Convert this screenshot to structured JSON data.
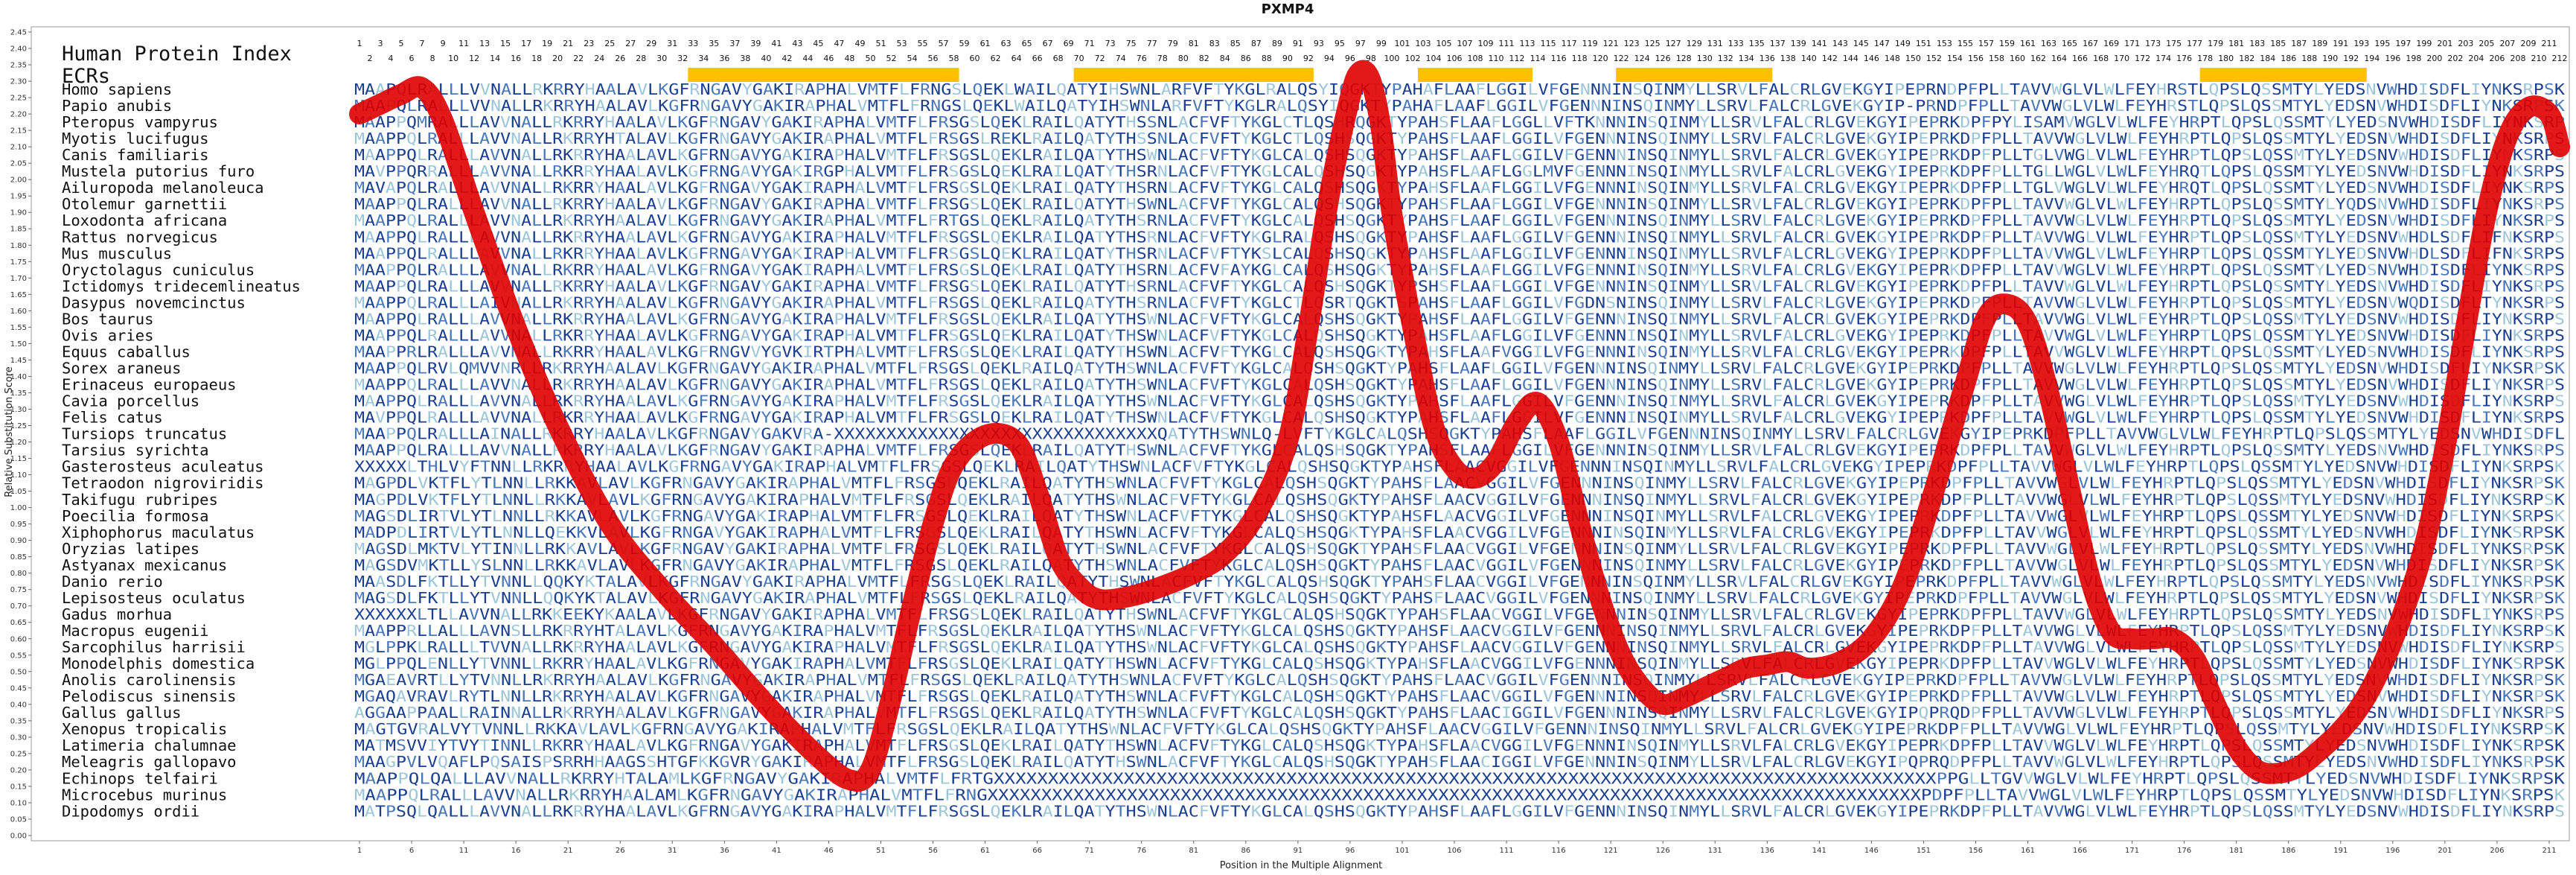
{
  "chart_data": {
    "type": "line",
    "title": "PXMP4",
    "xlabel": "Position in the Multiple Alignment",
    "ylabel": "Relative Substitution Score",
    "xlim": [
      1,
      212
    ],
    "ylim": [
      0.0,
      2.45
    ],
    "y_ticks": [
      "0.00",
      "0.05",
      "0.10",
      "0.15",
      "0.20",
      "0.25",
      "0.30",
      "0.35",
      "0.40",
      "0.45",
      "0.50",
      "0.55",
      "0.60",
      "0.65",
      "0.70",
      "0.75",
      "0.80",
      "0.85",
      "0.90",
      "0.95",
      "1.00",
      "1.05",
      "1.10",
      "1.15",
      "1.20",
      "1.25",
      "1.30",
      "1.35",
      "1.40",
      "1.45",
      "1.50",
      "1.55",
      "1.60",
      "1.65",
      "1.70",
      "1.75",
      "1.80",
      "1.85",
      "1.90",
      "1.95",
      "2.00",
      "2.05",
      "2.10",
      "2.15",
      "2.20",
      "2.25",
      "2.30",
      "2.35",
      "2.40",
      "2.45"
    ],
    "x_ticks": [
      "1",
      "6",
      "11",
      "16",
      "21",
      "26",
      "31",
      "36",
      "41",
      "46",
      "51",
      "56",
      "61",
      "66",
      "71",
      "76",
      "81",
      "86",
      "91",
      "96",
      "101",
      "106",
      "111",
      "116",
      "121",
      "126",
      "131",
      "136",
      "141",
      "146",
      "151",
      "156",
      "161",
      "166",
      "171",
      "176",
      "181",
      "186",
      "191",
      "196",
      "201",
      "206",
      "211"
    ],
    "index_row1": [
      "1",
      "3",
      "5",
      "7",
      "9",
      "11",
      "13",
      "15",
      "17",
      "19",
      "21",
      "23",
      "25",
      "27",
      "29",
      "31",
      "33",
      "35",
      "37",
      "39",
      "41",
      "43",
      "45",
      "47",
      "49",
      "51",
      "53",
      "55",
      "57",
      "59",
      "61",
      "63",
      "65",
      "67",
      "69",
      "71",
      "73",
      "75",
      "77",
      "79",
      "81",
      "83",
      "85",
      "87",
      "89",
      "91",
      "93",
      "95",
      "97",
      "99",
      "101",
      "103",
      "105",
      "107",
      "109",
      "111",
      "113",
      "115",
      "117",
      "119",
      "121",
      "123",
      "125",
      "127",
      "129",
      "131",
      "133",
      "135",
      "137",
      "139",
      "141",
      "143",
      "145",
      "147",
      "149",
      "151",
      "153",
      "155",
      "157",
      "159",
      "161",
      "163",
      "165",
      "167",
      "169",
      "171",
      "173",
      "175",
      "177",
      "179",
      "181",
      "183",
      "185",
      "187",
      "189",
      "191",
      "193",
      "195",
      "197",
      "199",
      "201",
      "203",
      "205",
      "207",
      "209",
      "211"
    ],
    "index_row2": [
      "2",
      "4",
      "6",
      "8",
      "10",
      "12",
      "14",
      "16",
      "18",
      "20",
      "22",
      "24",
      "26",
      "28",
      "30",
      "32",
      "34",
      "36",
      "38",
      "40",
      "42",
      "44",
      "46",
      "48",
      "50",
      "52",
      "54",
      "56",
      "58",
      "60",
      "62",
      "64",
      "66",
      "68",
      "70",
      "72",
      "74",
      "76",
      "78",
      "80",
      "82",
      "84",
      "86",
      "88",
      "90",
      "92",
      "94",
      "96",
      "98",
      "100",
      "102",
      "104",
      "106",
      "108",
      "110",
      "112",
      "114",
      "116",
      "118",
      "120",
      "122",
      "124",
      "126",
      "128",
      "130",
      "132",
      "134",
      "136",
      "138",
      "140",
      "142",
      "144",
      "146",
      "148",
      "150",
      "152",
      "154",
      "156",
      "158",
      "160",
      "162",
      "164",
      "166",
      "168",
      "170",
      "172",
      "174",
      "176",
      "178",
      "180",
      "182",
      "184",
      "186",
      "188",
      "190",
      "192",
      "194",
      "196",
      "198",
      "200",
      "202",
      "204",
      "206",
      "208",
      "210",
      "212"
    ],
    "header_labels": [
      "Human Protein Index",
      "ECRs"
    ],
    "ecr_regions": [
      [
        33,
        58
      ],
      [
        70,
        92
      ],
      [
        103,
        113
      ],
      [
        122,
        136
      ],
      [
        178,
        193
      ]
    ],
    "ecr_color": "#ffc000",
    "line_color": "#e00000",
    "series": [
      {
        "x": [
          1,
          3,
          5,
          7,
          9,
          12,
          16,
          20,
          25,
          30,
          35,
          40,
          45,
          48,
          50,
          52,
          54,
          56,
          58,
          61,
          64,
          66,
          68,
          70,
          72,
          75,
          78,
          81,
          84,
          87,
          90,
          92,
          94,
          96,
          97,
          98,
          99,
          100,
          102,
          104,
          106,
          108,
          110,
          112,
          114,
          116,
          118,
          120,
          122,
          124,
          126,
          128,
          130,
          132,
          134,
          136,
          138,
          140,
          143,
          146,
          149,
          152,
          155,
          157,
          159,
          161,
          163,
          165,
          167,
          169,
          171,
          173,
          175,
          177,
          179,
          181,
          183,
          185,
          187,
          189,
          191,
          193,
          195,
          197,
          199,
          201,
          203,
          205,
          207,
          209,
          211,
          212
        ],
        "y": [
          2.2,
          2.23,
          2.26,
          2.28,
          2.18,
          1.9,
          1.55,
          1.25,
          0.95,
          0.75,
          0.58,
          0.4,
          0.24,
          0.17,
          0.2,
          0.42,
          0.7,
          0.95,
          1.13,
          1.22,
          1.2,
          1.05,
          0.85,
          0.76,
          0.72,
          0.73,
          0.76,
          0.8,
          0.86,
          0.98,
          1.2,
          1.55,
          1.95,
          2.25,
          2.33,
          2.3,
          2.15,
          1.9,
          1.55,
          1.25,
          1.12,
          1.09,
          1.14,
          1.26,
          1.32,
          1.2,
          0.95,
          0.72,
          0.55,
          0.45,
          0.4,
          0.42,
          0.45,
          0.48,
          0.51,
          0.52,
          0.53,
          0.51,
          0.53,
          0.6,
          0.76,
          1.05,
          1.38,
          1.58,
          1.62,
          1.56,
          1.35,
          1.06,
          0.78,
          0.62,
          0.6,
          0.6,
          0.6,
          0.54,
          0.4,
          0.27,
          0.2,
          0.19,
          0.21,
          0.26,
          0.32,
          0.4,
          0.52,
          0.68,
          0.88,
          1.18,
          1.55,
          1.9,
          2.13,
          2.22,
          2.2,
          2.1
        ]
      }
    ]
  },
  "species": [
    "Homo sapiens",
    "Papio anubis",
    "Pteropus vampyrus",
    "Myotis lucifugus",
    "Canis familiaris",
    "Mustela putorius furo",
    "Ailuropoda melanoleuca",
    "Otolemur garnettii",
    "Loxodonta africana",
    "Rattus norvegicus",
    "Mus musculus",
    "Oryctolagus cuniculus",
    "Ictidomys tridecemlineatus",
    "Dasypus novemcinctus",
    "Bos taurus",
    "Ovis aries",
    "Equus caballus",
    "Sorex araneus",
    "Erinaceus europaeus",
    "Cavia porcellus",
    "Felis catus",
    "Tursiops truncatus",
    "Tarsius syrichta",
    "Gasterosteus aculeatus",
    "Tetraodon nigroviridis",
    "Takifugu rubripes",
    "Poecilia formosa",
    "Xiphophorus maculatus",
    "Oryzias latipes",
    "Astyanax mexicanus",
    "Danio rerio",
    "Lepisosteus oculatus",
    "Gadus morhua",
    "Macropus eugenii",
    "Sarcophilus harrisii",
    "Monodelphis domestica",
    "Anolis carolinensis",
    "Pelodiscus sinensis",
    "Gallus gallus",
    "Xenopus tropicalis",
    "Latimeria chalumnae",
    "Meleagris gallopavo",
    "Echinops telfairi",
    "Microcebus murinus",
    "Dipodomys ordii"
  ],
  "sequences": [
    "MAAPQLRALLLVVNALLRKRRYHAALAVLKGFRNGAVYGAKIRAPHALVMTFLFRNGSLQEKLWAILQATYIHSWNLARFVFTYKGLRALQSYIQGKTYPAHAFLAAFLGGILVFGENNNINSQINMYLLSRVLFALCRLGVEKGYIPEPRNDPFPLLTAVVWGLVLWLFEYHRSTLQPSLQSSMTYLYEDSNVWHDISDFLIYNKSRPSK",
    "MAAPQLRALLLVVNALLRKRRYHAALAVLKGFRNGAVYGAKIRAPHALVMTFLFRNGSLQEKLWAILQATYIHSWNLARFVFTYKGLRALQSYIQGKTYPAHAFLAAFLGGILVFGENNNINSQINMYLLSRVLFALCRLGVEKGYIP-PRNDPFPLLTAVVWGLVLWLFEYHRSTLQPSLQSSMTYLYEDSNVWHDISDFLIYNKSRPSK",
    "MAAPPQMRALLLAVVNALLRKRRYHAALAVLKGFRNGAVYGAKIRAPHALVMTFLFRSGSLQEKLRAILQATYTHSSNLACFVFTYKGLCTLQSHRQGKTYPAHSFLAAFLGGLLVFTKNNNINSQINMYLLSRVLFALCRLGVEKGYIPEPRKDPFPYLISAMVWGLVLWLFEYHRPTLQPSLQSSMTYLYEDSNVWHDISDFLIYNKSRPSK",
    "MAAPPQLRALLLAVVNALLRKRRYHTALAVLKGFRNGAVYGAKIRAPHALVMTFLFRSGSLREKLRAILQATYTHSSNLACFVFTYKGLCTLQSHSQGKTYPAHSFLAAFLGGILVFGENNNINSQINMYLLSRVLFALCRLGVEKGYIPEPRKDPFPLLTAVVWGLVLWLFEYHRPTLQPSLQSSMTYLYEDSNVWHDISDFLIYNKSRPSK",
    "MAAPPQLRALLLAVVNALLRKRRYHAALAVLKGFRNGAVYGAKIRAPHALVMTFLFRSGSLQEKLRAILQATYTHSWNLACFVFTYKGLCALQSHSQGKTYPAHSFLAAFLGGILVFGENNNINSQINMYLLSRVLFALCRLGVEKGYIPEPRKDPFPLLTGLVWGLVLWLFEYHRPTLQPSLQSSMTYLYEDSNVWHDISDFLIYNKSRPSK",
    "MAVPPQRRALLLAVVNALLRKRRYHAALAVLKGFRNGAVYGAKIRGPHALVMTFLFRSGSLQEKLRAILQATYTHSRNLACFVFTYKGLCALQSHSQGKTYPAHSFLAAFLGGLMVFGENNNINSQINMYLLSRVLFALCRLGVEKGYIPEPRKDPFPLLTGLLWGLVLWLFEYHRQTLQPSLQSSMTYLYEDSNVWHDISDFLIYNKSRPSK",
    "MAVAPQLRALLLAVVNALLRKRRYHAALAVLKGFRNGAVYGAKIRAPHALVMTFLFRSGSLQEKLRAILQATYTHSRNLACFVFTYKGLCALQSHSQGKTYPAHSFLAAFLGGILVFGENNNINSQINMYLLSRVLFALCRLGVEKGYIPEPRKDPFPLLTGLVWGLVLWLFEYHRQTLQPSLQSSMTYLYEDSNVWHDISDFLIYNKSRPSK",
    "MAAPPQLRALLLAVVNALLRKRRYHAALAVLKGFRNGAVYGAKIRAPHALVMTFLFRSGSLQEKLRAILQATYTHSWNLACFVFTYKGLCALQSHSQGKTYPAHSFLAAFLGGILVFGENNNINSQINMYLLSRVLFALCRLGVEKGYIPEPRKDPFPLLTAVVWGLVLWLFEYHRPTLQPSLQSSMTYLYQDSNVWHDISDFLIYNKSRPSK",
    "MAAPPQLRALLLAVVNALLRKRRYHAALAVLKGFRNGAVYGAKIRAPHALVMTFLFRTGSLQEKLRAILQATYTHSRNLACFVFTYKGLCALQSHSQGKTYPAHSFLAAFLGGILVFGENNNINSQINMYLLSRVLFALCRLGVEKGYIPEPRKDPFPLLTAVVWGLVLWLFEYHRPTLQPSLQSSMTYLYEDSNVWHDISDFLIYNKSRPSK",
    "MAAPPQLRALLLAVVNALLRKRRYHAALAVLKGFRNGAVYGAKIRAPHALVMTFLFRSGSLQEKLRAILQATYTHSRNLACFVFTYKGLRALQSHSQGKTYPAHSFLAAFLGGILVFGENNNINSQINMYLLSRVLFALCRLGVEKGYIPEPRKDPFPLLTAVVWGLVLWLFEYHRPTLQPSLQSSMTYLYEDSNVWHDLSDFLIFNKSRPSK",
    "MAAPPQLRALLLAVVNALLRKRRYHAALAVLKGFRNGAVYGAKIRAPHALVMTFLFRSGSLQEKLRAILQATYTHSRNLACFVFTYKSLCALQSHSQGKTYPAHSFLAAFLGGILVFGENNNINSQINMYLLSRVLFALCRLGVEKGYIPEPRKDPFPLLTAVVWGLVLWLFEYHRPTLQPSLQSSMTYLYEDSNVWHDLSDFLIFNKSRPSK",
    "MAAPPQLRALLLAVVNALLRKRRYHAALAVLKGFRNGAVYGAKIRAPHALVMTFLFRSGSLQEKLRAILQATYTHSRNLACFVFAYKGLCALQSHSQGKTYPAHSFLAAFLGGILVFGENNNINSQINMYLLSRVLFALCRLGVEKGYIPEPRKDPFPLLTAVVWGLVLWLFEYHRPTLQPSLQSSMTYLYEDSNVWHDISDFLIYNKSRPSK",
    "MAAPPQLRALLLAVVNALLRKRRYHAALAVLKGFRNGAVYGAKIRAPHALVMTFLFRSGSLQEKLRAILQATYTHSRNLACFVFTYKGLCALQSHSQGKTYPSHSFLAAFLGGILVFGENNNINSQINMYLLSRVLFALCRLGVEKGYIPEPRKDPFPLLTAVVWGLVLWLFEYHRPTLQPSLQSSMTYLYEDSNVWHDISDFLIYNKSRPSK",
    "MAAPPQLRALLLAIVNALLRKRRYHAALAVLKGFRNGAVYGAKIRAPHALVMTFLFRSGSLQEKLRAILQATYTHSRNLACFVFTYKGLCTLQSRTQGKTSPAHSFLAAFLGGILVFGDNSNINSQINMYLLSRVLFALCRLGVEKGYIPEPRKDPFPLLTAVVWGLVLWLFEYHRPTLQPSLQSSMTYLYEDSNVWQDISDFLTYNKSRPSK",
    "MAAPPQLRALLLAVVNALLRKRRYHAALAVLKGFRNGAVYGAKIRAPHALVMTFLFRSGSLQEKLRAILQATYTHSWNLACFVFTYKGLCALQSHSQGKTYPAHSFLAAFLGGILVFGENNNINSQINMYLLSRVLFALCRLGVEKGYIPEPRKDPFPLLTAVVWGLVLWLFEYHRPTLQPSLQSSMTYLYEDSNVWHDISDFLIYNKSRPSK",
    "MAAPPQLRALLLAVVNALLRKRRYHAALAVLKGFRNGAVYGAKIRAPHALVMTFLFRSGSLQEKLRAILQATYTHSWNLACFVFTYKGLCALQSHSQGKTYPAHSFLAAFLGGILVFGENNNINSQINMYLLSRVLFALCRLGVEKGYIPEPRKDPFPLLTAVVWGLVLWLFEYHRPTLQPSLQSSMTYLYEDSNVWHDISDFLIYNKSRPSK",
    "MAAPPRLRALLLAVVNALLRKRRYHAALAVLKGFRNGVVYGVKIRTPHALVMTFLFRSGSLQEKLRAILQATYTHSWNLACFVFTYKGLCALQSHSQGKTYPAHSFLAAFVGGILVFGENNNINSQINMYLLSRVLFALCRLGVEKGYIPEPRKDPFPLLTAVVWGLVLWLFEYHRPTLQPSLQSSMTYLYEDSNVWHDISDFLIYNKSRPSK",
    "MAAPPQLRVLQMVVNRLLRKRRYHAALAVLKGFRNGAVYGAKIRAPHALVMTFLFRSGSLQEKLRAILQATYTHSWNLACFVFTYKGLCALQSHSQGKTYPAHSFLAAFLGGILVFGENNNINSQINMYLLSRVLFALCRLGVEKGYIPEPRKDPFPLLTAVVWGLVLWLFEYHRPTLQPSLQSSMTYLYEDSNVWHDISDFLIYNKSRPSK",
    "MAAPPQLRALLLAVVNALLRKRRYHAALAVLKGFRNGAVYGAKIRAPHALVMTFLFRSGSLQEKLRAILQATYTHSWNLACFVFTYKGLCALQSHSQGKTYPAHSFLAAFLGGILVFGENNNINSQINMYLLSRVLFALCRLGVEKGYIPEPRKDPFPLLTAVVWGLVLWLFEYHRPTLQPSLQSSMTYLYEDSNVWHDISDFLIYNKSRPSK",
    "MAAPPQLRALLLAVVNALLRKRRYHAALAVLKGFRNGAVYGAKIRAPHALVMTFLFRSGSLQEKLRAILQATYTHSWNLACFVFTYKGLCALQSHSQGKTYPAHSFLAAFLGGILVFGENNNINSQINMYLLSRVLFALCRLGVEKGYIPEPRKDPFPLLTAVVWGLVLWLFEYHRPTLQPSLQSSMTYLYEDSNVWHDISDFLIYNKSRPSK",
    "MAVPPQLRALLLAVVNALLRKRRYHAALAVLKGFRNGAVYGAKIRAPHALVMTFLFRSGSLQEKLRAILQATYTHSWNLACFVFTYKGLCALQSHSQGKTYPAHSFLAAFLGGILVFGENNNINSQINMYLLSRVLFALCRLGVEKGYIPEPRKDPFPLLTAVVWGLVLWLFEYHRPTLQPSLQSSMTYLYEDSNVWHDISDFLIYNKSRPSK",
    "MAAPPQLRALLLAINALLRKRRYHAALAVLKGFRNGAVYGAKVRA-XXXXXXXXXXXXXXXXXXXXXXXXXXXXXXXQATYTHSWNLQ-LVFTYKGLCALQSHSQGKTYPAHSFLAAFLGGILVFGENNNINSQINMYLLSRVLFALCRLGVEKGYIPEPRKDPFPLLTAVVWGLVLWLFEYHRPTLQPSLQSSMTYLYEDSNVWHDISDFLIYNKSRPSK",
    "MAAPPQLRALLLAVVNALLRKRRYHAALAVLKGFRNGAVYGAKIRAPHALVMTFLFRSGSLQEKLRAILQATYTHSWNLACFVFTYKGLCALQSHSQGKTYPAHSFLAAFLGGILVFGENNNINSQINMYLLSRVLFALCRLGVEKGYIPEPRKDPFPLLTAVVWGLVLWLFEYHRPTLQPSLQSSMTYLYEDSNVWHDISDFLIYNKSRPSK",
    "XXXXXLTHLVYFTNNLLRKRRYHAALAVLKGFRNGAVYGAKIRAPHALVMTFLFRSGSLQEKLRAILQATYTHSWNLACFVFTYKGLCALQSHSQGKTYPAHSFLAACVGGILVFGENNNINSQINMYLLSRVLFALCRLGVEKGYIPEPRKDPFPLLTAVVWGLVLWLFEYHRPTLQPSLQSSMTYLYEDSNVWHDISDFLIYNKSRPSK",
    "MAGPDLVKTFLYTLNNLLRKKAVLAVLKGFRNGAVYGAKIRAPHALVMTFLFRSGSLQEKLRAILQATYTHSWNLACFVFTYKGLCALQSHSQGKTYPAHSFLAACVGGILVFGENNNINSQINMYLLSRVLFALCRLGVEKGYIPEPRKDPFPLLTAVVWGLVLWLFEYHRPTLQPSLQSSMTYLYEDSNVWHDISDFLIYNKSRPSK",
    "MAGPDLVKTFLYTLNNLLRKKAVLAVLKGFRNGAVYGAKIRAPHALVMTFLFRSGSLQEKLRAILQATYTHSWNLACFVFTYKGLCALQSHSQGKTYPAHSFLAACVGGILVFGENNNINSQINMYLLSRVLFALCRLGVEKGYIPEPRKDPFPLLTAVVWGLVLWLFEYHRPTLQPSLQSSMTYLYEDSNVWHDISDFLIYNKSRPSK",
    "MAGSDLIRTVLYTLNNLLRKKAVLAVLKGFRNGAVYGAKIRAPHALVMTFLFRSGSLQEKLRAILQATYTHSWNLACFVFTYKGLCALQSHSQGKTYPAHSFLAACVGGILVFGENNNINSQINMYLLSRVLFALCRLGVEKGYIPEPRKDPFPLLTAVVWGLVLWLFEYHRPTLQPSLQSSMTYLYEDSNVWHDISDFLIYNKSRPSK",
    "MADPDLIRTVLYTLNNLLQEKKVLAVLKGFRNGAVYGAKIRAPHALVMTFLFRSGSLQEKLRAILQATYTHSWNLACFVFTYKGLCALQSHSQGKTYPAHSFLAACVGGILVFGENNNINSQINMYLLSRVLFALCRLGVEKGYIPEPRKDPFPLLTAVVWGLVLWLFEYHRPTLQPSLQSSMTYLYEDSNVWHDISDFLIYNKSRPSK",
    "MAGSDLMKTVLYTINNLLRKKAVLAVLKGFRNGAVYGAKIRAPHALVMTFLFRSGSLQEKLRAILQATYTHSWNLACFVFTYKGLCALQSHSQGKTYPAHSFLAACVGGILVFGENNNINSQINMYLLSRVLFALCRLGVEKGYIPEPRKDPFPLLTAVVWGLVLWLFEYHRPTLQPSLQSSMTYLYEDSNVWHDISDFLIYNKSRPSK",
    "MAGSDVMKTLLYSLNNLLRKKAVLAVLKGFRNGAVYGAKIRAPHALVMTFLFRSGSLQEKLRAILQATYTHSWNLACFVFTYKGLCALQSHSQGKTYPAHSFLAACVGGILVFGENNNINSQINMYLLSRVLFALCRLGVEKGYIPEPRKDPFPLLTAVVWGLVLWLFEYHRPTLQPSLQSSMTYLYEDSNVWHDISDFLIYNKSRPSK",
    "MAASDLFKTLLYTVNNLLQQKYKTALAVLKGFRNGAVYGAKIRAPHALVMTFLFRSGSLQEKLRAILQATYTHSWNLACFVFTYKGLCALQSHSQGKTYPAHSFLAACVGGILVFGENNNINSQINMYLLSRVLFALCRLGVEKGYIPEPRKDPFPLLTAVVWGLVLWLFEYHRPTLQPSLQSSMTYLYEDSNVWHDISDFLIYNKSRPSK",
    "MAGSDLFKTLLYTVNNLLQQKYKTALAVLKGFRNGAVYGAKIRAPHALVMTFLFRSGSLQEKLRAILQATYTHSWNLACFVFTYKGLCALQSHSQGKTYPAHSFLAACVGGILVFGENNNINSQINMYLLSRVLFALCRLGVEKGYIPEPRKDPFPLLTAVVWGLVLWLFEYHRPTLQPSLQSSMTYLYEDSNVWHDISDFLIYNKSRPSK",
    "XXXXXXLTLLAVVNALLRKKEEKYKAALAVLKGFRNGAVYGAKIRAPHALVMTFLFRSGSLQEKLRAILQATYTHSWNLACFVFTYKGLCALQSHSQGKTYPAHSFLAACVGGILVFGENNNINSQINMYLLSRVLFALCRLGVEKGYIPEPRKDPFPLLTAVVWGLVLWLFEYHRPTLQPSLQSSMTYLYEDSNVWHDISDFLIYNKSRPSK",
    "MAAPPRLLALLLAVNSLLRKRRYHTALAVLKGFRNGAVYGAKIRAPHALVMTFLFRSGSLQEKLRAILQATYTHSWNLACFVFTYKGLCALQSHSQGKTYPAHSFLAACVGGILVFGENNNINSQINMYLLSRVLFALCRLGVEKGYIPEPRKDPFPLLTAVVWGLVLWLFEYHRPTLQPSLQSSMTYLYEDSNVWHDISDFLIYNKSRPSK",
    "MGLPPKLRALLLTVVNALLRKRRYHAALAVLKGFRNGAVYGAKIRAPHALVMTFLFRSGSLQEKLRAILQATYTHSWNLACFVFTYKGLCALQSHSQGKTYPAHSFLAACVGGILVFGENNNINSQINMYLLSRVLFALCRLGVEKGYIPEPRKDPFPLLTAVVWGLVLWLFEYHRPTLQPSLQSSMTYLYEDSNVWHDISDFLIYNKSRPSK",
    "MGLPPQLENLLYTVNNLLRKRRYHAALAVLKGFRNGAVYGAKIRAPHALVMTFLFRSGSLQEKLRAILQATYTHSWNLACFVFTYKGLCALQSHSQGKTYPAHSFLAACVGGILVFGENNNINSQINMYLLSRVLFALCRLGVEKGYIPEPRKDPFPLLTAVVWGLVLWLFEYHRPTLQPSLQSSMTYLYEDSNVWHDISDFLIYNKSRPSK",
    "MGAEAVRTLLYTVNNLLRKRRYHAALAVLKGFRNGAVYGAKIRAPHALVMTFLFRSGSLQEKLRAILQATYTHSWNLACFVFTYKGLCALQSHSQGKTYPAHSFLAACVGGILVFGENNNINSQINMYLLSRVLFALCRLGVEKGYIPEPRKDPFPLLTAVVWGLVLWLFEYHRPTLQPSLQSSMTYLYEDSNVWHDISDFLIYNKSRPSK",
    "MGAQAVRAVLRYTLNNLLRKRRYHAALAVLKGFRNGAVYGAKIRAPHALVMTFLFRSGSLQEKLRAILQATYTHSWNLACFVFTYKGLCALQSHSQGKTYPAHSFLAACVGGILVFGENNNINSQINMYLLSRVLFALCRLGVEKGYIPEPRKDPFPLLTAVVWGLVLWLFEYHRPTLQPSLQSSMTYLYEDSNVWHDISDFLIYNKSRPSK",
    "AGGAAPPAALLRAINNALLRKRRYHAALAVLKGFRNGAVYGAKIRAPHALVMTFLFRSGSLQEKLRAILQATYTHSWNLACFVFTYKGLCALQSHSQGKTYPAHSFLAACIGGILVFGENNNINSQINMYLLSRVLFALCRLGVEKGYIPQPRQDPFPLLTAVVWGLVLWLFEYHRPTLQPSLQSSMTYLYEDSNVWHDISDFLIYNKSRPSK",
    "MAGTGVRALVYTVNNLLRKKAVLAVLKGFRNGAVYGAKIRAPHALVMTFLFRSGSLQEKLRAILQATYTHSWNLACFVFTYKGLCALQSHSQGKTYPAHSFLAACVGGILVFGENNNINSQINMYLLSRVLFALCRLGVEKGYIPEPRKDPFPLLTAVVWGLVLWLFEYHRPTLQPSLQSSMTYLYEDSNVWHDISDFLIYNKSRPSK",
    "MATMSVVIYTVYTINNLLRKRRYHAALAVLKGFRNGAVYGAKIRAPHALVMTFLFRSGSLQEKLRAILQATYTHSWNLACFVFTYKGLCALQSHSQGKTYPAHSFLAACVGGILVFGENNNINSQINMYLLSRVLFALCRLGVEKGYIPEPRKDPFPLLTAVVWGLVLWLFEYHRPTLQPSLQSSMTYLYEDSNVWHDISDFLIYNKSRPSK",
    "MAAGPVLVQAFLPQSAISPSRRHHAAGSSHTGFKKGVRYGAKIRAPHALVMTFLFRSGSLQEKLRAILQATYTHSWNLACFVFTYKGLCALQSHSQGKTYPAHSFLAACIGGILVFGENNNINSQINMYLLSRVLFALCRLGVEKGYIPQPRQDPFPLLTAVVWGLVLWLFEYHRPTLQPSLQSSMTYLYEDSNVWHDISDFLIYNKSRPSK",
    "MAAPPQLQALLLAVVNALLRKRRYHTALAMLKGFRNGAVYGAKIRAPHALVMTFLFRTGXXXXXXXXXXXXXXXXXXXXXXXXXXXXXXXXXXXXXXXXXXXXXXXXXXXXXXXXXXXXXXXXXXXXXXXXXXXXXXXXXXXXXXXPPGLLTGVVWGLVLWLFEYHRPTLQPSLQSSMTYLYEDSNVWHDISDFLIYNKSRPSK",
    "MAAPPQLRALLLAVVNALLRKRRYHAALAMLKGFRNGAVYGAKIRAPHALVMTFLFRNGXXXXXXXXXXXXXXXXXXXXXXXXXXXXXXXXXXXXXXXXXXXXXXXXXXXXXXXXXXXXXXXXXXXXXXXXXXXXXXXXXXXXXXXPDPFPLLTAVVWGLVLWLFEYHRPTLQPSLQSSMTYLYEDSNVWHDISDFLIYNKSRPSK",
    "MATPSQLQALLLAVVNALLRKRRYHAALAVLKGFRNGAVYGAKIRAPHALVMTFLFRSGSLQEKLRAILQATYTHSWNLACFVFTYKGLCALQSHSQGKTYPAHSFLAAFLGGILVFGENNNINSQINMYLLSRVLFALCRLGVEKGYIPEPRKDPFPLLTAVVWGLVLWLFEYHRPTLQPSLQSSMTYLYEDSNVWHDISDFLIYNKSRPSK"
  ],
  "colors": {
    "residue_dark": "#1a3f8f",
    "residue_mid": "#4a78b8",
    "residue_light": "#9cc6d8",
    "residue_pale": "#c4e2e8",
    "gap_dark": "#2a4d9a"
  }
}
